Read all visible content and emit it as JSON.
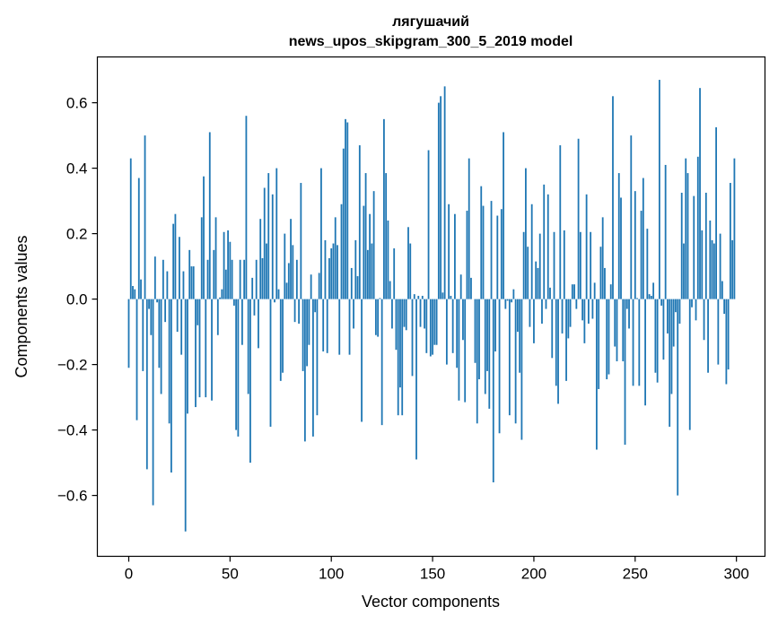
{
  "chart_data": {
    "type": "bar",
    "title": "лягушачий",
    "subtitle": "news_upos_skipgram_300_5_2019 model",
    "xlabel": "Vector components",
    "ylabel": "Components values",
    "xlim": [
      -15.5,
      314.1
    ],
    "ylim": [
      -0.786,
      0.74
    ],
    "xticks": [
      0,
      50,
      100,
      150,
      200,
      250,
      300
    ],
    "xtick_labels": [
      "0",
      "50",
      "100",
      "150",
      "200",
      "250",
      "300"
    ],
    "yticks": [
      -0.6,
      -0.4,
      -0.2,
      0.0,
      0.2,
      0.4,
      0.6
    ],
    "ytick_labels": [
      "−0.6",
      "−0.4",
      "−0.2",
      "0.0",
      "0.2",
      "0.4",
      "0.6"
    ],
    "grid": false,
    "bar_color": "#1f77b4",
    "values": [
      -0.21,
      0.43,
      0.04,
      0.03,
      -0.37,
      0.37,
      0.06,
      -0.22,
      0.5,
      -0.52,
      -0.03,
      -0.11,
      -0.63,
      0.13,
      -0.01,
      -0.21,
      -0.29,
      0.12,
      -0.07,
      0.085,
      -0.38,
      -0.53,
      0.23,
      0.26,
      -0.1,
      0.19,
      -0.17,
      0.085,
      -0.71,
      -0.35,
      0.15,
      0.1,
      0.1,
      -0.33,
      -0.08,
      -0.3,
      0.25,
      0.375,
      -0.3,
      0.12,
      0.51,
      -0.31,
      0.15,
      0.25,
      -0.11,
      0.005,
      0.03,
      0.205,
      0.09,
      0.21,
      0.175,
      0.12,
      -0.02,
      -0.4,
      -0.42,
      0.12,
      -0.14,
      0.12,
      0.56,
      -0.29,
      -0.5,
      0.065,
      -0.05,
      0.12,
      -0.15,
      0.245,
      0.125,
      0.34,
      0.17,
      0.385,
      -0.39,
      0.32,
      -0.01,
      0.4,
      0.03,
      -0.25,
      -0.225,
      0.2,
      0.05,
      0.11,
      0.245,
      0.165,
      -0.07,
      0.12,
      -0.075,
      0.355,
      -0.22,
      -0.435,
      -0.205,
      -0.14,
      0.075,
      -0.42,
      -0.04,
      -0.355,
      0.08,
      0.4,
      -0.16,
      0.18,
      -0.165,
      0.125,
      0.155,
      0.17,
      0.25,
      0.165,
      -0.17,
      0.29,
      0.46,
      0.55,
      0.54,
      -0.17,
      0.095,
      -0.09,
      0.18,
      0.07,
      0.47,
      -0.375,
      0.285,
      0.385,
      0.15,
      0.26,
      0.17,
      0.33,
      -0.11,
      -0.115,
      0.003,
      -0.385,
      0.55,
      0.385,
      0.24,
      0.055,
      -0.09,
      0.155,
      -0.155,
      -0.355,
      -0.27,
      -0.355,
      -0.085,
      -0.095,
      0.22,
      0.17,
      -0.235,
      0.015,
      -0.49,
      0.01,
      -0.085,
      0.01,
      -0.09,
      -0.165,
      0.455,
      -0.175,
      -0.17,
      -0.14,
      -0.14,
      0.6,
      0.62,
      0.02,
      0.65,
      -0.2,
      0.29,
      0.01,
      -0.165,
      0.26,
      -0.21,
      -0.31,
      0.075,
      -0.125,
      -0.315,
      0.27,
      0.43,
      0.065,
      0.0,
      -0.195,
      -0.38,
      -0.245,
      0.345,
      0.285,
      -0.29,
      -0.22,
      -0.335,
      0.3,
      -0.56,
      -0.16,
      0.255,
      -0.41,
      0.275,
      0.51,
      -0.03,
      -0.005,
      -0.355,
      -0.01,
      0.03,
      -0.38,
      -0.1,
      -0.225,
      -0.43,
      0.205,
      0.4,
      0.16,
      -0.085,
      0.29,
      -0.135,
      0.115,
      0.095,
      0.2,
      -0.075,
      0.35,
      -0.03,
      0.32,
      0.035,
      -0.18,
      0.205,
      -0.265,
      -0.32,
      0.47,
      -0.105,
      0.21,
      -0.25,
      -0.12,
      -0.085,
      0.045,
      0.045,
      -0.03,
      0.49,
      0.205,
      -0.065,
      -0.135,
      0.32,
      -0.075,
      0.205,
      -0.06,
      0.05,
      -0.46,
      -0.275,
      0.16,
      0.25,
      0.095,
      -0.245,
      -0.23,
      0.045,
      0.62,
      -0.145,
      -0.19,
      0.385,
      0.31,
      -0.19,
      -0.445,
      -0.03,
      -0.09,
      0.5,
      -0.265,
      0.33,
      0.003,
      -0.265,
      0.27,
      0.37,
      -0.325,
      0.215,
      0.015,
      0.01,
      0.05,
      -0.225,
      -0.255,
      0.67,
      -0.02,
      -0.185,
      0.41,
      -0.105,
      -0.39,
      -0.29,
      -0.145,
      -0.04,
      -0.6,
      -0.075,
      0.325,
      0.17,
      0.43,
      0.385,
      -0.4,
      -0.025,
      0.315,
      -0.065,
      0.435,
      0.645,
      0.21,
      -0.125,
      0.325,
      -0.225,
      0.24,
      0.18,
      0.17,
      0.525,
      -0.2,
      0.2,
      0.055,
      -0.045,
      -0.26,
      -0.215,
      0.355,
      0.18,
      0.43
    ]
  }
}
